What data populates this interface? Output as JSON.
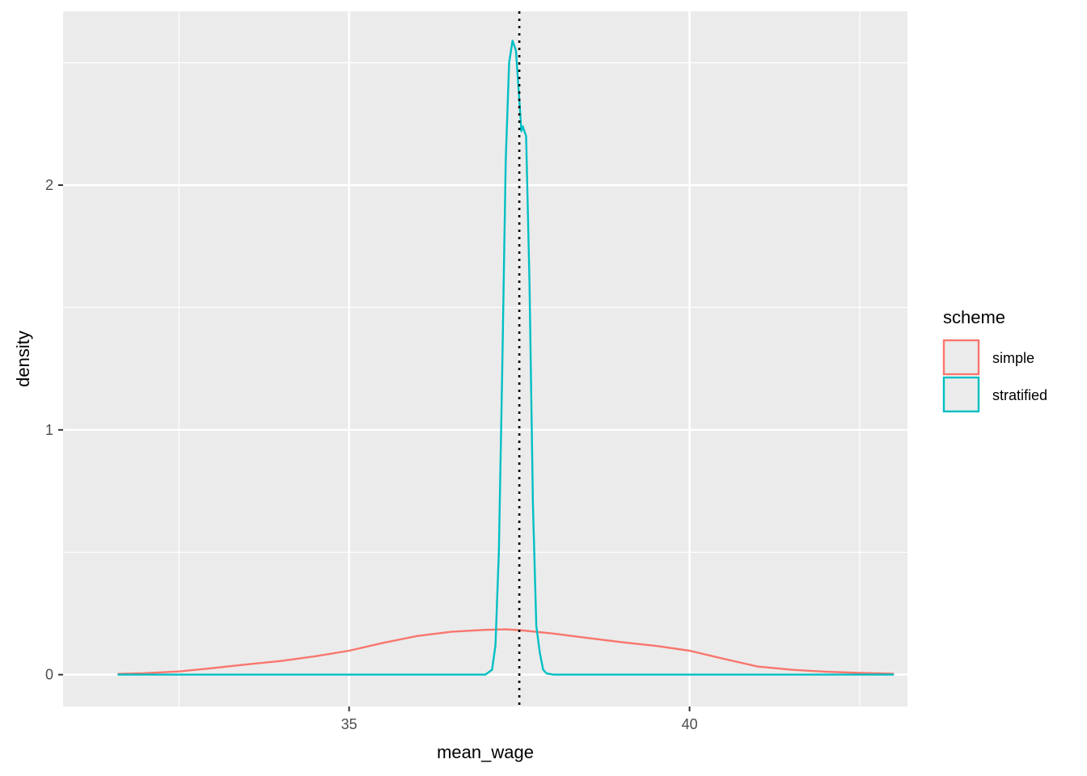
{
  "chart_data": {
    "type": "line",
    "xlabel": "mean_wage",
    "ylabel": "density",
    "xlim": [
      30.8,
      43.2
    ],
    "ylim": [
      -0.13,
      2.71
    ],
    "x_ticks": [
      35,
      40
    ],
    "x_tick_labels": [
      "35",
      "40"
    ],
    "x_minor_gridlines": [
      32.5,
      37.5,
      42.5
    ],
    "y_ticks": [
      0,
      1,
      2
    ],
    "y_tick_labels": [
      "0",
      "1",
      "2"
    ],
    "y_minor_gridlines": [
      0.5,
      1.5,
      2.5
    ],
    "grid": true,
    "legend": {
      "title": "scheme",
      "position": "right"
    },
    "reference_line": {
      "orientation": "vertical",
      "x": 37.5,
      "style": "dotted",
      "color": "#000000"
    },
    "series": [
      {
        "name": "simple",
        "color": "#F8766D",
        "x": [
          31.6,
          32.0,
          32.5,
          33.0,
          33.5,
          34.0,
          34.5,
          35.0,
          35.5,
          36.0,
          36.5,
          37.0,
          37.3,
          37.5,
          38.0,
          38.5,
          39.0,
          39.5,
          40.0,
          40.5,
          41.0,
          41.5,
          42.0,
          42.5,
          43.0
        ],
        "y": [
          0.003,
          0.006,
          0.013,
          0.027,
          0.042,
          0.056,
          0.075,
          0.098,
          0.13,
          0.158,
          0.175,
          0.183,
          0.185,
          0.182,
          0.168,
          0.15,
          0.133,
          0.118,
          0.098,
          0.065,
          0.033,
          0.02,
          0.012,
          0.007,
          0.004
        ]
      },
      {
        "name": "stratified",
        "color": "#00BFC4",
        "x": [
          31.6,
          37.0,
          37.1,
          37.15,
          37.2,
          37.25,
          37.3,
          37.35,
          37.4,
          37.45,
          37.5,
          37.53,
          37.55,
          37.6,
          37.65,
          37.7,
          37.75,
          37.8,
          37.85,
          37.9,
          38.0,
          43.0
        ],
        "y": [
          0.0,
          0.0,
          0.02,
          0.12,
          0.5,
          1.25,
          2.1,
          2.5,
          2.59,
          2.55,
          2.35,
          2.22,
          2.24,
          2.2,
          1.6,
          0.7,
          0.2,
          0.09,
          0.02,
          0.005,
          0.0,
          0.0
        ]
      }
    ]
  }
}
